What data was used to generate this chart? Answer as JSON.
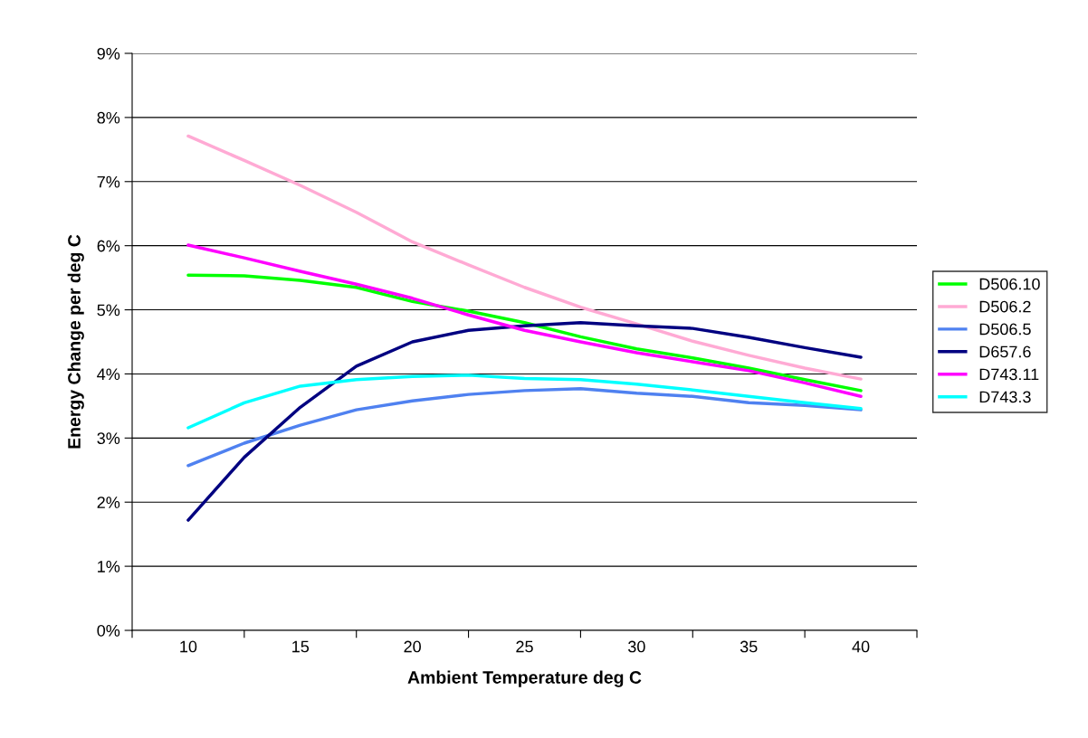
{
  "chart_data": {
    "type": "line",
    "xlabel": "Ambient Temperature deg C",
    "ylabel": "Energy Change per deg C",
    "x": [
      10,
      12.5,
      15,
      17.5,
      20,
      22.5,
      25,
      27.5,
      30,
      32.5,
      35,
      37.5,
      40
    ],
    "series": [
      {
        "name": "D506.10",
        "color": "#00ff00",
        "values": [
          5.54,
          5.53,
          5.46,
          5.35,
          5.13,
          4.98,
          4.8,
          4.58,
          4.39,
          4.25,
          4.09,
          3.91,
          3.74
        ]
      },
      {
        "name": "D506.2",
        "color": "#ffaad4",
        "values": [
          7.71,
          7.33,
          6.94,
          6.52,
          6.06,
          5.7,
          5.35,
          5.04,
          4.78,
          4.51,
          4.29,
          4.09,
          3.92
        ]
      },
      {
        "name": "D506.5",
        "color": "#4f81f0",
        "values": [
          2.57,
          2.92,
          3.2,
          3.44,
          3.58,
          3.68,
          3.74,
          3.77,
          3.7,
          3.65,
          3.55,
          3.51,
          3.44
        ]
      },
      {
        "name": "D657.6",
        "color": "#000080",
        "values": [
          1.72,
          2.7,
          3.48,
          4.12,
          4.5,
          4.68,
          4.75,
          4.8,
          4.75,
          4.71,
          4.57,
          4.41,
          4.26
        ]
      },
      {
        "name": "D743.11",
        "color": "#ff00ff",
        "values": [
          6.01,
          5.81,
          5.6,
          5.4,
          5.18,
          4.92,
          4.68,
          4.5,
          4.33,
          4.19,
          4.05,
          3.86,
          3.65
        ]
      },
      {
        "name": "D743.3",
        "color": "#00ffff",
        "values": [
          3.16,
          3.55,
          3.81,
          3.91,
          3.96,
          3.98,
          3.93,
          3.91,
          3.84,
          3.75,
          3.65,
          3.55,
          3.46
        ]
      }
    ],
    "xlim": [
      7.5,
      42.5
    ],
    "xticks": [
      {
        "value": 7.5,
        "label": null
      },
      10,
      {
        "value": 12.5,
        "label": null
      },
      15,
      {
        "value": 17.5,
        "label": null
      },
      20,
      {
        "value": 22.5,
        "label": null
      },
      25,
      {
        "value": 27.5,
        "label": null
      },
      30,
      {
        "value": 32.5,
        "label": null
      },
      35,
      {
        "value": 37.5,
        "label": null
      },
      40,
      {
        "value": 42.5,
        "label": null
      }
    ],
    "ylim": [
      0,
      9
    ],
    "yticks": [
      {
        "value": 0,
        "label": "0%"
      },
      {
        "value": 1,
        "label": "1%"
      },
      {
        "value": 2,
        "label": "2%"
      },
      {
        "value": 3,
        "label": "3%"
      },
      {
        "value": 4,
        "label": "4%"
      },
      {
        "value": 5,
        "label": "5%"
      },
      {
        "value": 6,
        "label": "6%"
      },
      {
        "value": 7,
        "label": "7%"
      },
      {
        "value": 8,
        "label": "8%"
      },
      {
        "value": 9,
        "label": "9%"
      }
    ],
    "grid": "y",
    "legend": "right",
    "line_style": "solid",
    "marker": "none"
  }
}
